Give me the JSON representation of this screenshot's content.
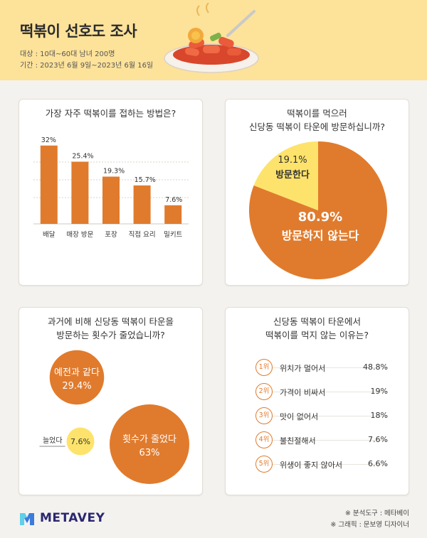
{
  "header": {
    "title": "떡볶이 선호도 조사",
    "target": "대상 : 10대~60대 남녀 200명",
    "period": "기간 : 2023년 6월 9일~2023년 6월 16일"
  },
  "chart_data": [
    {
      "type": "bar",
      "title": "가장 자주 떡볶이를 접하는 방법은?",
      "categories": [
        "배달",
        "매장 방문",
        "포장",
        "직접 요리",
        "밀키트"
      ],
      "values": [
        32,
        25.4,
        19.3,
        15.7,
        7.6
      ],
      "value_labels": [
        "32%",
        "25.4%",
        "19.3%",
        "15.7%",
        "7.6%"
      ],
      "color": "#e07b2d",
      "ylim": [
        0,
        36
      ]
    },
    {
      "type": "pie",
      "title_lines": [
        "떡볶이를 먹으러",
        "신당동 떡볶이 타운에 방문하십니까?"
      ],
      "slices": [
        {
          "label": "방문하지 않는다",
          "value": 80.9,
          "value_label": "80.9%",
          "color": "#e07b2d"
        },
        {
          "label": "방문한다",
          "value": 19.1,
          "value_label": "19.1%",
          "color": "#fde36b"
        }
      ]
    },
    {
      "type": "bubble",
      "title_lines": [
        "과거에 비해 신당동 떡볶이 타운을",
        "방문하는 횟수가 줄었습니까?"
      ],
      "items": [
        {
          "label": "예전과 같다",
          "value": 29.4,
          "value_label": "29.4%",
          "color": "#e07b2d"
        },
        {
          "label": "늘었다",
          "value": 7.6,
          "value_label": "7.6%",
          "color": "#fde36b"
        },
        {
          "label": "횟수가 줄었다",
          "value": 63,
          "value_label": "63%",
          "color": "#e07b2d"
        }
      ]
    },
    {
      "type": "table",
      "title_lines": [
        "신당동 떡볶이 타운에서",
        "떡볶이를 먹지 않는 이유는?"
      ],
      "rows": [
        {
          "rank": "1위",
          "reason": "위치가 멀어서",
          "value": "48.8%"
        },
        {
          "rank": "2위",
          "reason": "가격이 비싸서",
          "value": "19%"
        },
        {
          "rank": "3위",
          "reason": "맛이 없어서",
          "value": "18%"
        },
        {
          "rank": "4위",
          "reason": "불친절해서",
          "value": "7.6%"
        },
        {
          "rank": "5위",
          "reason": "위생이 좋지 않아서",
          "value": "6.6%"
        }
      ]
    }
  ],
  "footer": {
    "logo": "METAVEY",
    "credit_tool": "※ 분석도구 : 메타베이",
    "credit_graphic": "※ 그래픽 : 문보영 디자이너"
  },
  "colors": {
    "accent": "#e07b2d",
    "highlight": "#fde36b",
    "header_bg": "#fde29a"
  }
}
